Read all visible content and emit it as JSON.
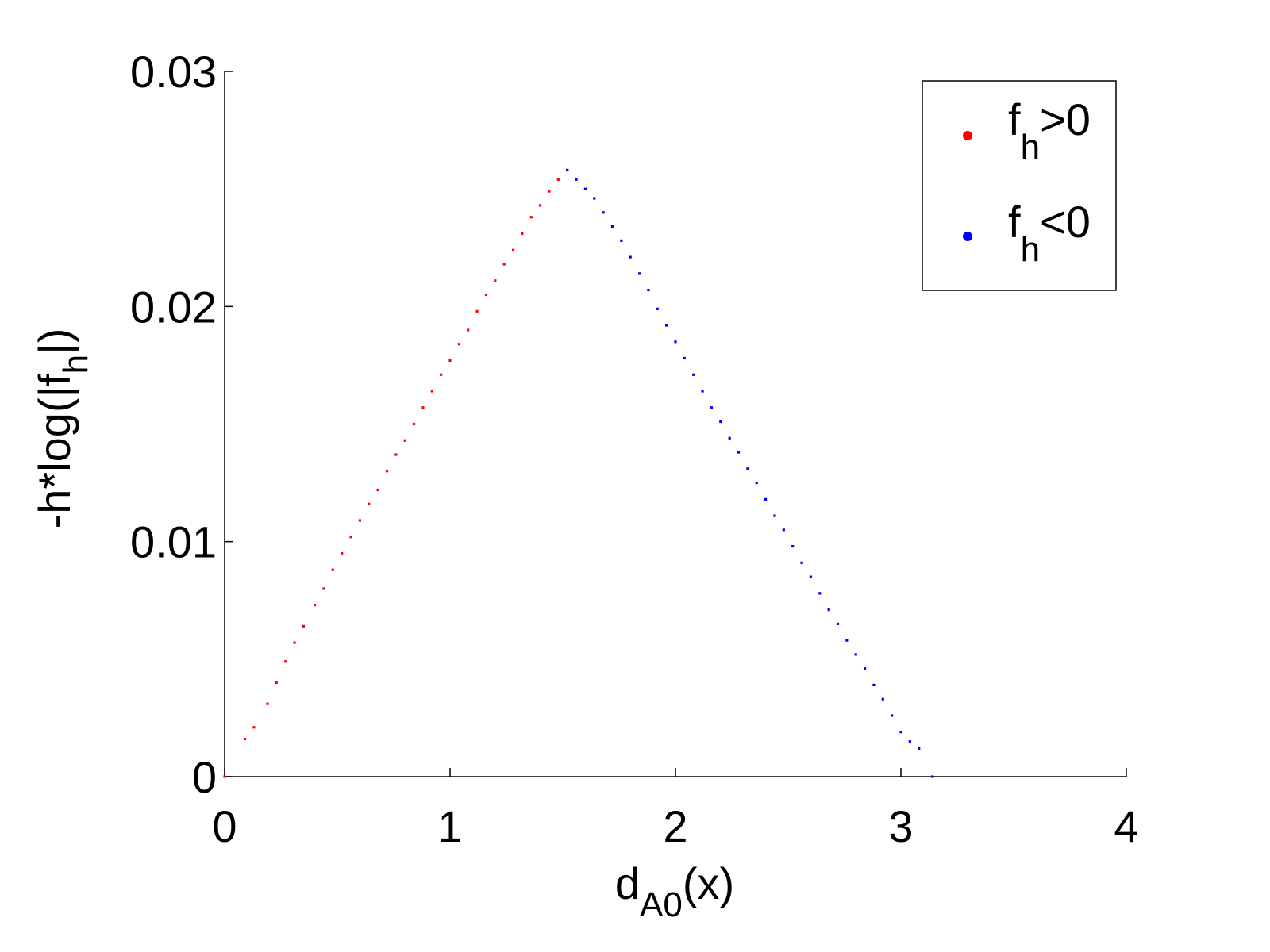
{
  "chart_data": {
    "type": "scatter",
    "title": "",
    "xlabel": "d_A0(x)",
    "xlabel_main": "d",
    "xlabel_sub": "A0",
    "xlabel_tail": "(x)",
    "ylabel": "-h*log(|f_h|)",
    "ylabel_main": "-h*log(|f",
    "ylabel_sub": "h",
    "ylabel_tail": "|)",
    "xlim": [
      0,
      4
    ],
    "ylim": [
      0,
      0.03
    ],
    "xticks": [
      0,
      1,
      2,
      3,
      4
    ],
    "xtick_labels": [
      "0",
      "1",
      "2",
      "3",
      "4"
    ],
    "yticks": [
      0,
      0.01,
      0.02,
      0.03
    ],
    "ytick_labels": [
      "0",
      "0.01",
      "0.02",
      "0.03"
    ],
    "grid": false,
    "legend_position": "top-right",
    "series": [
      {
        "name": "f_h>0",
        "legend_main": "f",
        "legend_sub": "h",
        "legend_tail": ">0",
        "color": "#ff0000",
        "x": [
          0,
          0.09,
          0.13,
          0.19,
          0.23,
          0.27,
          0.31,
          0.35,
          0.4,
          0.44,
          0.48,
          0.52,
          0.56,
          0.6,
          0.64,
          0.68,
          0.72,
          0.76,
          0.8,
          0.84,
          0.88,
          0.92,
          0.96,
          1.0,
          1.04,
          1.08,
          1.12,
          1.16,
          1.2,
          1.24,
          1.28,
          1.32,
          1.36,
          1.4,
          1.44,
          1.48,
          1.52
        ],
        "y": [
          0,
          0.0016,
          0.0021,
          0.0031,
          0.004,
          0.0049,
          0.0057,
          0.0064,
          0.0073,
          0.008,
          0.0088,
          0.0095,
          0.0102,
          0.0109,
          0.0116,
          0.0122,
          0.013,
          0.0137,
          0.0143,
          0.015,
          0.0157,
          0.0164,
          0.0171,
          0.0177,
          0.0184,
          0.019,
          0.0198,
          0.0205,
          0.0211,
          0.0218,
          0.0224,
          0.0231,
          0.0238,
          0.0243,
          0.0249,
          0.0254,
          0.0258
        ]
      },
      {
        "name": "f_h<0",
        "legend_main": "f",
        "legend_sub": "h",
        "legend_tail": "<0",
        "color": "#0000ff",
        "x": [
          1.52,
          1.56,
          1.6,
          1.64,
          1.68,
          1.72,
          1.76,
          1.8,
          1.84,
          1.88,
          1.92,
          1.96,
          2.0,
          2.04,
          2.08,
          2.12,
          2.16,
          2.2,
          2.24,
          2.28,
          2.32,
          2.36,
          2.4,
          2.44,
          2.48,
          2.52,
          2.56,
          2.6,
          2.64,
          2.68,
          2.72,
          2.76,
          2.8,
          2.84,
          2.88,
          2.92,
          2.96,
          3.0,
          3.04,
          3.08,
          3.14
        ],
        "y": [
          0.0258,
          0.0254,
          0.025,
          0.0246,
          0.024,
          0.0234,
          0.0228,
          0.0221,
          0.0214,
          0.0207,
          0.0199,
          0.0192,
          0.0185,
          0.0178,
          0.0171,
          0.0164,
          0.0157,
          0.0151,
          0.0144,
          0.0138,
          0.0131,
          0.0125,
          0.0118,
          0.0111,
          0.0105,
          0.0098,
          0.0091,
          0.0085,
          0.0078,
          0.0071,
          0.0065,
          0.0058,
          0.0052,
          0.0046,
          0.0039,
          0.0033,
          0.0026,
          0.0019,
          0.0015,
          0.0012,
          0
        ]
      }
    ]
  }
}
